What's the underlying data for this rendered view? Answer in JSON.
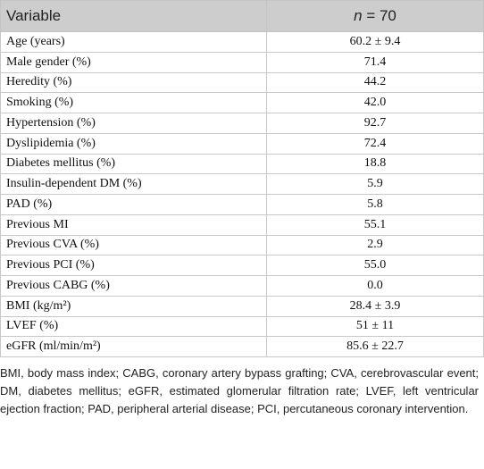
{
  "table": {
    "header": {
      "variable": "Variable",
      "n_symbol": "n",
      "n_value": "= 70"
    },
    "rows": [
      [
        "Age (years)",
        "60.2 ± 9.4"
      ],
      [
        "Male gender (%)",
        "71.4"
      ],
      [
        "Heredity (%)",
        "44.2"
      ],
      [
        "Smoking (%)",
        "42.0"
      ],
      [
        "Hypertension (%)",
        "92.7"
      ],
      [
        "Dyslipidemia (%)",
        "72.4"
      ],
      [
        "Diabetes mellitus (%)",
        "18.8"
      ],
      [
        "Insulin-dependent DM (%)",
        "5.9"
      ],
      [
        "PAD (%)",
        "5.8"
      ],
      [
        "Previous MI",
        "55.1"
      ],
      [
        "Previous CVA (%)",
        "2.9"
      ],
      [
        "Previous PCI (%)",
        "55.0"
      ],
      [
        "Previous CABG (%)",
        "0.0"
      ],
      [
        "BMI (kg/m²)",
        "28.4 ± 3.9"
      ],
      [
        "LVEF (%)",
        "51 ± 11"
      ],
      [
        "eGFR (ml/min/m²)",
        "85.6 ± 22.7"
      ]
    ],
    "footnote": "BMI, body mass index; CABG, coronary artery bypass grafting; CVA, cerebrovascular event; DM, diabetes mellitus; eGFR, estimated glomerular filtration rate; LVEF, left ventricular ejection fraction; PAD, peripheral arterial disease; PCI, percutaneous coronary intervention."
  }
}
